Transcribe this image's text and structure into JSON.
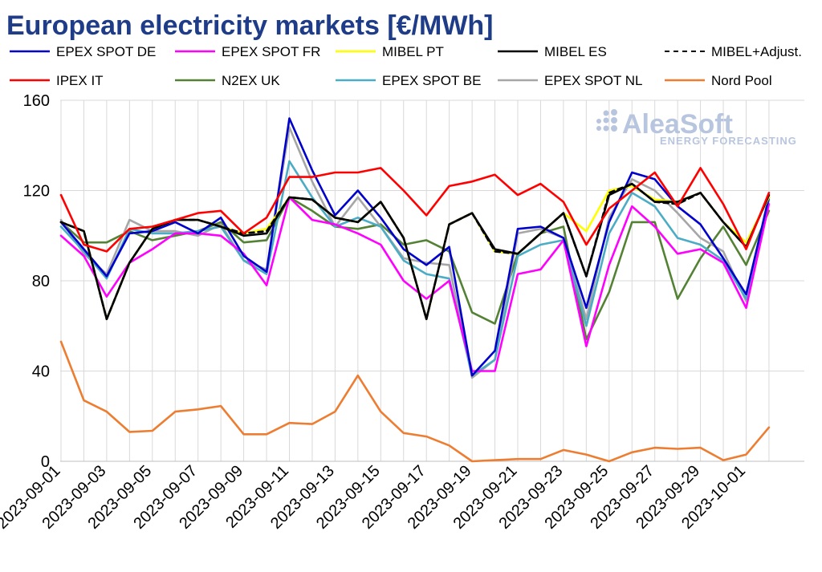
{
  "title": "European electricity markets [€/MWh]",
  "logo": {
    "name": "AleaSoft",
    "tagline": "ENERGY FORECASTING"
  },
  "colors": {
    "title": "#1f3c88",
    "EPEX SPOT DE": "#0000cc",
    "EPEX SPOT FR": "#ff00ff",
    "MIBEL PT": "#ffff00",
    "MIBEL ES": "#000000",
    "MIBEL+Adjust.": "#000000",
    "IPEX IT": "#ff0000",
    "N2EX UK": "#548235",
    "EPEX SPOT BE": "#4bacc6",
    "EPEX SPOT NL": "#a6a6a6",
    "Nord Pool": "#ed7d31"
  },
  "chart_data": {
    "type": "line",
    "title": "European electricity markets [€/MWh]",
    "xlabel": "",
    "ylabel": "",
    "ylim": [
      0,
      160
    ],
    "yticks": [
      0,
      40,
      80,
      120,
      160
    ],
    "grid": true,
    "legend_position": "top",
    "x": [
      "2023-09-01",
      "2023-09-02",
      "2023-09-03",
      "2023-09-04",
      "2023-09-05",
      "2023-09-06",
      "2023-09-07",
      "2023-09-08",
      "2023-09-09",
      "2023-09-10",
      "2023-09-11",
      "2023-09-12",
      "2023-09-13",
      "2023-09-14",
      "2023-09-15",
      "2023-09-16",
      "2023-09-17",
      "2023-09-18",
      "2023-09-19",
      "2023-09-20",
      "2023-09-21",
      "2023-09-22",
      "2023-09-23",
      "2023-09-24",
      "2023-09-25",
      "2023-09-26",
      "2023-09-27",
      "2023-09-28",
      "2023-09-29",
      "2023-09-30",
      "2023-10-01",
      "2023-10-02"
    ],
    "x_tick_labels": [
      "2023-09-01",
      "2023-09-03",
      "2023-09-05",
      "2023-09-07",
      "2023-09-09",
      "2023-09-11",
      "2023-09-13",
      "2023-09-15",
      "2023-09-17",
      "2023-09-19",
      "2023-09-21",
      "2023-09-23",
      "2023-09-25",
      "2023-09-27",
      "2023-09-29",
      "2023-10-01"
    ],
    "series": [
      {
        "name": "Nord Pool",
        "dash": false,
        "values": [
          53,
          27,
          22,
          13,
          13.5,
          22,
          23,
          24.5,
          12,
          12,
          17,
          16.5,
          22,
          38,
          22,
          12.5,
          11,
          7,
          0,
          0.5,
          1,
          1,
          5,
          3,
          0,
          4,
          6,
          5.5,
          6,
          0.5,
          3,
          15
        ]
      },
      {
        "name": "N2EX UK",
        "dash": false,
        "values": [
          106,
          97,
          97,
          102,
          98,
          100,
          102,
          106,
          97,
          98,
          117,
          111,
          104,
          103,
          105,
          96,
          98,
          93,
          66,
          61,
          92,
          101,
          104,
          54,
          75,
          106,
          106,
          72,
          90,
          104,
          87,
          111
        ]
      },
      {
        "name": "EPEX SPOT NL",
        "dash": false,
        "values": [
          107,
          92,
          83,
          107,
          102,
          102,
          100,
          105,
          89,
          85,
          148,
          124,
          104,
          117,
          104,
          90,
          88,
          87,
          37,
          45,
          101,
          103,
          99,
          63,
          108,
          125,
          120,
          110,
          99,
          93,
          71,
          118
        ]
      },
      {
        "name": "EPEX SPOT BE",
        "dash": false,
        "values": [
          104,
          93,
          81,
          103,
          101,
          101,
          102,
          104,
          89,
          83,
          133,
          117,
          104,
          108,
          104,
          89,
          83,
          81,
          38,
          45,
          91,
          96,
          98,
          60,
          101,
          119,
          113,
          99,
          96,
          89,
          72,
          116
        ]
      },
      {
        "name": "EPEX SPOT FR",
        "dash": false,
        "values": [
          100,
          91,
          73,
          88,
          94,
          101,
          101,
          100,
          92,
          78,
          117,
          107,
          105,
          101,
          96,
          80,
          72,
          80,
          40,
          40,
          83,
          85,
          98,
          51,
          87,
          113,
          104,
          92,
          94,
          88,
          68,
          114
        ]
      },
      {
        "name": "EPEX SPOT DE",
        "dash": false,
        "values": [
          106,
          94,
          82,
          101,
          102,
          106,
          101,
          108,
          91,
          84,
          152,
          129,
          109,
          120,
          108,
          94,
          87,
          95,
          38,
          49,
          103,
          104,
          99,
          68,
          106,
          128,
          125,
          113,
          105,
          90,
          74,
          117
        ]
      },
      {
        "name": "MIBEL PT",
        "dash": false,
        "values": [
          106,
          102,
          63,
          88,
          103,
          107,
          107,
          104,
          101,
          103,
          117,
          116,
          108,
          106,
          115,
          99,
          63,
          105,
          110,
          93,
          92,
          101,
          110,
          102,
          120,
          122,
          116,
          115,
          119,
          106,
          97,
          117
        ]
      },
      {
        "name": "MIBEL+Adjust.",
        "dash": true,
        "values": [
          106,
          102,
          63,
          88,
          103,
          107,
          107,
          104,
          101,
          102,
          117,
          116,
          108,
          106,
          115,
          99,
          63,
          105,
          110,
          93,
          92,
          101,
          110,
          82,
          119,
          123,
          115,
          114,
          119,
          106,
          95,
          118
        ]
      },
      {
        "name": "MIBEL ES",
        "dash": false,
        "values": [
          106,
          102,
          63,
          88,
          103,
          107,
          107,
          104,
          100,
          101,
          117,
          116,
          108,
          106,
          115,
          99,
          63,
          105,
          110,
          94,
          92,
          101,
          110,
          82,
          118,
          123,
          115,
          115,
          119,
          106,
          95,
          118
        ]
      },
      {
        "name": "IPEX IT",
        "dash": false,
        "values": [
          118,
          96,
          93,
          103,
          104,
          107,
          110,
          111,
          101,
          108,
          126,
          126,
          128,
          128,
          130,
          120,
          109,
          122,
          124,
          127,
          118,
          123,
          115,
          96,
          112,
          120,
          128,
          113,
          130,
          114,
          94,
          119
        ]
      }
    ],
    "legend": [
      "EPEX SPOT DE",
      "EPEX SPOT FR",
      "MIBEL PT",
      "MIBEL ES",
      "MIBEL+Adjust.",
      "IPEX IT",
      "N2EX UK",
      "EPEX SPOT BE",
      "EPEX SPOT NL",
      "Nord Pool"
    ]
  }
}
